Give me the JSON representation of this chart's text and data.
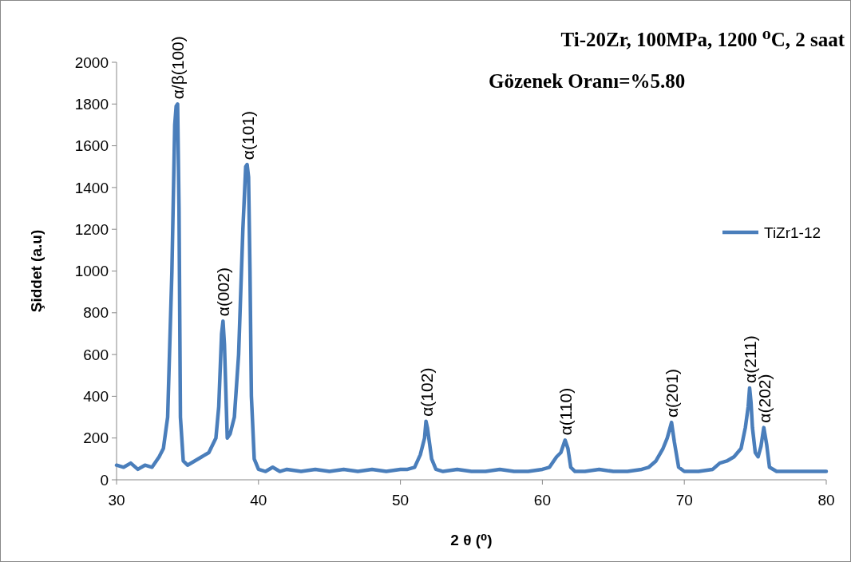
{
  "chart_data": {
    "type": "line",
    "title": "Ti-20Zr, 100MPa, 1200 ⁰C, 2 saat",
    "subtitle": "Gözenek Oranı=%5.80",
    "xlabel": "2 θ (⁰)",
    "ylabel": "Şiddet (a.u)",
    "xlim": [
      30,
      80
    ],
    "xticks": [
      30,
      40,
      50,
      60,
      70,
      80
    ],
    "ylim": [
      0,
      2000
    ],
    "yticks": [
      0,
      200,
      400,
      600,
      800,
      1000,
      1200,
      1400,
      1600,
      1800,
      2000
    ],
    "grid": false,
    "legend": "right",
    "marker": "none",
    "line_style": "solid",
    "x": [
      30,
      30.5,
      31,
      31.5,
      32,
      32.5,
      33,
      33.3,
      33.6,
      33.9,
      34.1,
      34.2,
      34.3,
      34.4,
      34.5,
      34.7,
      35,
      35.5,
      36,
      36.5,
      37,
      37.2,
      37.4,
      37.5,
      37.6,
      37.8,
      38,
      38.3,
      38.6,
      38.9,
      39.1,
      39.2,
      39.3,
      39.4,
      39.5,
      39.7,
      40,
      40.5,
      41,
      41.5,
      42,
      43,
      44,
      45,
      46,
      47,
      48,
      49,
      50,
      50.5,
      51,
      51.4,
      51.7,
      51.8,
      51.9,
      52.2,
      52.5,
      53,
      54,
      55,
      56,
      57,
      58,
      59,
      60,
      60.5,
      61,
      61.3,
      61.6,
      61.8,
      62,
      62.3,
      63,
      64,
      65,
      66,
      67,
      67.5,
      68,
      68.5,
      68.8,
      69.1,
      69.3,
      69.6,
      70,
      71,
      72,
      72.5,
      73,
      73.5,
      74,
      74.3,
      74.5,
      74.6,
      74.7,
      74.8,
      75,
      75.2,
      75.4,
      75.6,
      75.8,
      76,
      76.5,
      77,
      78,
      79,
      80
    ],
    "series": [
      {
        "name": "TiZr1-12",
        "color": "#4a7ebb",
        "values": [
          70,
          60,
          80,
          50,
          70,
          60,
          110,
          150,
          300,
          1000,
          1700,
          1790,
          1800,
          1300,
          300,
          90,
          70,
          90,
          110,
          130,
          200,
          350,
          700,
          760,
          650,
          200,
          220,
          300,
          600,
          1200,
          1500,
          1510,
          1450,
          1000,
          400,
          100,
          50,
          40,
          60,
          40,
          50,
          40,
          50,
          40,
          50,
          40,
          50,
          40,
          50,
          50,
          60,
          120,
          200,
          280,
          250,
          100,
          50,
          40,
          50,
          40,
          40,
          50,
          40,
          40,
          50,
          60,
          110,
          130,
          190,
          150,
          60,
          40,
          40,
          50,
          40,
          40,
          50,
          60,
          90,
          150,
          200,
          275,
          180,
          60,
          40,
          40,
          50,
          80,
          90,
          110,
          150,
          250,
          350,
          440,
          370,
          250,
          130,
          110,
          160,
          250,
          170,
          60,
          40,
          40,
          40,
          40,
          40
        ]
      }
    ],
    "annotations": [
      {
        "text": "α/β(100)",
        "x": 34.3,
        "y": 1800
      },
      {
        "text": "α(002)",
        "x": 37.5,
        "y": 760
      },
      {
        "text": "α(101)",
        "x": 39.2,
        "y": 1510
      },
      {
        "text": "α(102)",
        "x": 51.8,
        "y": 280
      },
      {
        "text": "α(110)",
        "x": 61.6,
        "y": 190
      },
      {
        "text": "α(201)",
        "x": 69.1,
        "y": 275
      },
      {
        "text": "α(211)",
        "x": 74.6,
        "y": 440
      },
      {
        "text": "α(202)",
        "x": 75.6,
        "y": 250
      }
    ]
  }
}
